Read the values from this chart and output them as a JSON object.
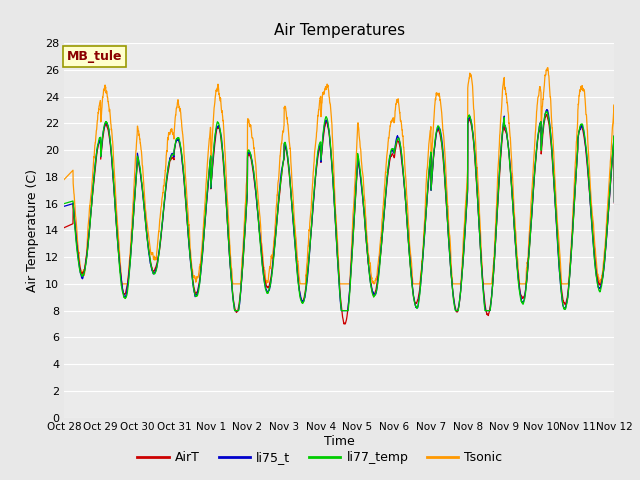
{
  "title": "Air Temperatures",
  "ylabel": "Air Temperature (C)",
  "xlabel": "Time",
  "annotation": "MB_tule",
  "ylim": [
    0,
    28
  ],
  "yticks": [
    0,
    2,
    4,
    6,
    8,
    10,
    12,
    14,
    16,
    18,
    20,
    22,
    24,
    26,
    28
  ],
  "xtick_labels": [
    "Oct 28",
    "Oct 29",
    "Oct 30",
    "Oct 31",
    "Nov 1",
    "Nov 2",
    "Nov 3",
    "Nov 4",
    "Nov 5",
    "Nov 6",
    "Nov 7",
    "Nov 8",
    "Nov 9",
    "Nov 10",
    "Nov 11",
    "Nov 12"
  ],
  "colors": {
    "AirT": "#cc0000",
    "li75_t": "#0000cc",
    "li77_temp": "#00cc00",
    "Tsonic": "#ff9900"
  },
  "background_color": "#e8e8e8",
  "plot_area_color": "#ebebeb",
  "grid_color": "#ffffff",
  "figsize": [
    6.4,
    4.8
  ],
  "dpi": 100
}
